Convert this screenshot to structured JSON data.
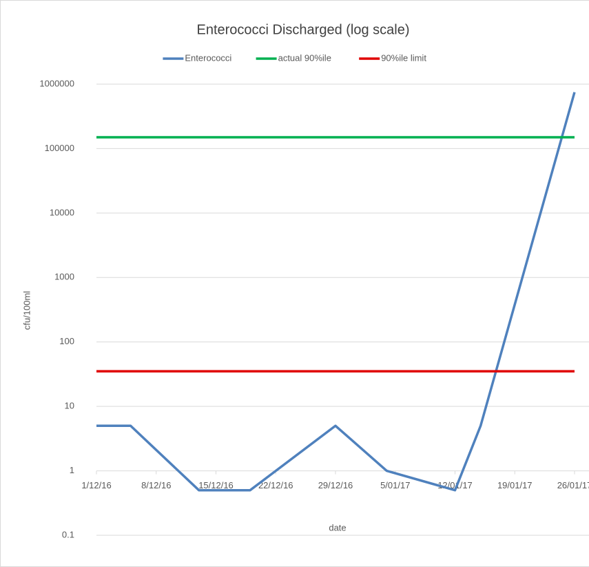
{
  "chart_data": {
    "type": "line",
    "title": "Enterococci Discharged (log scale)",
    "x_label": "date",
    "y_label": "cfu/100ml",
    "log_y": true,
    "grid": true,
    "legend": "top",
    "x": [
      "2016-12-01",
      "2016-12-05",
      "2016-12-13",
      "2016-12-19",
      "2016-12-29",
      "2017-01-04",
      "2017-01-12",
      "2017-01-15",
      "2017-01-26"
    ],
    "series": [
      {
        "name": "Enterococci",
        "color": "#4f81bd",
        "values": [
          5,
          5,
          0.5,
          0.5,
          5,
          1,
          0.5,
          5,
          750000
        ]
      },
      {
        "name": "actual 90%ile",
        "color": "#00b050",
        "values": [
          150000,
          150000,
          150000,
          150000,
          150000,
          150000,
          150000,
          150000,
          150000
        ]
      },
      {
        "name": "90%ile limit",
        "color": "#e00000",
        "values": [
          35,
          35,
          35,
          35,
          35,
          35,
          35,
          35,
          35
        ]
      }
    ],
    "xlim": [
      "2016-12-01",
      "2017-01-26"
    ],
    "xticks": [
      {
        "value": "2016-12-01",
        "label": "1/12/16"
      },
      {
        "value": "2016-12-08",
        "label": "8/12/16"
      },
      {
        "value": "2016-12-15",
        "label": "15/12/16"
      },
      {
        "value": "2016-12-22",
        "label": "22/12/16"
      },
      {
        "value": "2016-12-29",
        "label": "29/12/16"
      },
      {
        "value": "2017-01-05",
        "label": "5/01/17"
      },
      {
        "value": "2017-01-12",
        "label": "12/01/17"
      },
      {
        "value": "2017-01-19",
        "label": "19/01/17"
      },
      {
        "value": "2017-01-26",
        "label": "26/01/17"
      }
    ],
    "ylim": [
      0.1,
      1000000
    ],
    "yticks": [
      0.1,
      1,
      10,
      100,
      1000,
      10000,
      100000,
      1000000
    ]
  }
}
